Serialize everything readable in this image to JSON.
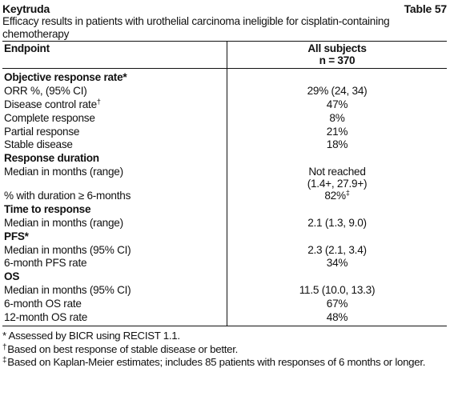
{
  "header": {
    "product": "Keytruda",
    "table_number": "Table 57",
    "caption": "Efficacy results in patients with urothelial carcinoma ineligible for cisplatin-containing chemotherapy"
  },
  "table": {
    "col_endpoint": "Endpoint",
    "col_all_line1": "All subjects",
    "col_all_line2": "n = 370",
    "rows": [
      {
        "label": "Objective response rate*",
        "label_sup": "",
        "value": "",
        "value_line2": "",
        "value_sup": "",
        "section": true
      },
      {
        "label": "ORR %, (95% CI)",
        "label_sup": "",
        "value": "29% (24, 34)",
        "value_line2": "",
        "value_sup": "",
        "section": false
      },
      {
        "label": "Disease control rate",
        "label_sup": "†",
        "value": "47%",
        "value_line2": "",
        "value_sup": "",
        "section": false
      },
      {
        "label": "Complete response",
        "label_sup": "",
        "value": "8%",
        "value_line2": "",
        "value_sup": "",
        "section": false
      },
      {
        "label": "Partial response",
        "label_sup": "",
        "value": "21%",
        "value_line2": "",
        "value_sup": "",
        "section": false
      },
      {
        "label": "Stable disease",
        "label_sup": "",
        "value": "18%",
        "value_line2": "",
        "value_sup": "",
        "section": false
      },
      {
        "label": "Response duration",
        "label_sup": "",
        "value": "",
        "value_line2": "",
        "value_sup": "",
        "section": true
      },
      {
        "label": "Median in months (range)",
        "label_sup": "",
        "value": "Not reached",
        "value_line2": "(1.4+, 27.9+)",
        "value_sup": "",
        "section": false
      },
      {
        "label": "% with duration ≥ 6-months",
        "label_sup": "",
        "value": "82%",
        "value_line2": "",
        "value_sup": "‡",
        "section": false
      },
      {
        "label": "Time to response",
        "label_sup": "",
        "value": "",
        "value_line2": "",
        "value_sup": "",
        "section": true
      },
      {
        "label": "Median in months (range)",
        "label_sup": "",
        "value": "2.1 (1.3, 9.0)",
        "value_line2": "",
        "value_sup": "",
        "section": false
      },
      {
        "label": "PFS*",
        "label_sup": "",
        "value": "",
        "value_line2": "",
        "value_sup": "",
        "section": true
      },
      {
        "label": "Median in months (95% CI)",
        "label_sup": "",
        "value": "2.3 (2.1, 3.4)",
        "value_line2": "",
        "value_sup": "",
        "section": false
      },
      {
        "label": "6-month PFS rate",
        "label_sup": "",
        "value": "34%",
        "value_line2": "",
        "value_sup": "",
        "section": false
      },
      {
        "label": "OS",
        "label_sup": "",
        "value": "",
        "value_line2": "",
        "value_sup": "",
        "section": true
      },
      {
        "label": "Median in months (95% CI)",
        "label_sup": "",
        "value": "11.5 (10.0, 13.3)",
        "value_line2": "",
        "value_sup": "",
        "section": false
      },
      {
        "label": "6-month OS rate",
        "label_sup": "",
        "value": "67%",
        "value_line2": "",
        "value_sup": "",
        "section": false
      },
      {
        "label": "12-month OS rate",
        "label_sup": "",
        "value": "48%",
        "value_line2": "",
        "value_sup": "",
        "section": false
      }
    ]
  },
  "footnotes": [
    {
      "mark": "",
      "text": "* Assessed by BICR using RECIST 1.1."
    },
    {
      "mark": "†",
      "text": "Based on best response of stable disease or better."
    },
    {
      "mark": "‡",
      "text": "Based on Kaplan-Meier estimates; includes 85 patients with responses of 6 months or longer."
    }
  ]
}
